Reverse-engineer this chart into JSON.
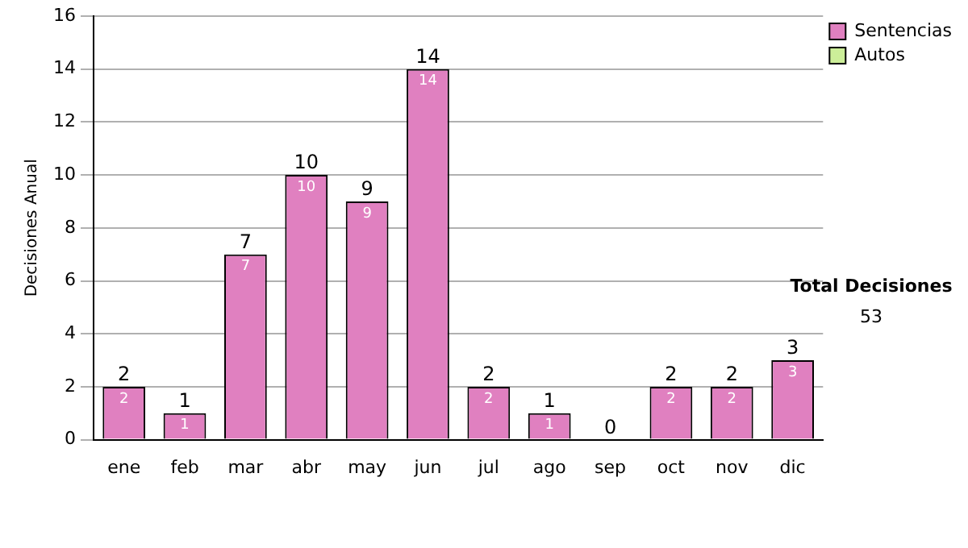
{
  "chart_data": {
    "type": "bar",
    "stacked": true,
    "ylabel": "Decisiones Anual",
    "categories": [
      "ene",
      "feb",
      "mar",
      "abr",
      "may",
      "jun",
      "jul",
      "ago",
      "sep",
      "oct",
      "nov",
      "dic"
    ],
    "series": [
      {
        "name": "Sentencias",
        "color": "#e080c0",
        "values": [
          2,
          1,
          7,
          10,
          9,
          14,
          2,
          1,
          0,
          2,
          2,
          3
        ],
        "value_labels": [
          "2",
          "1",
          "7",
          "10",
          "9",
          "14",
          "2",
          "1",
          null,
          "2",
          "2",
          "3"
        ]
      },
      {
        "name": "Autos",
        "color": "#ccee99",
        "values": [
          0,
          0,
          0,
          0,
          0,
          0,
          0,
          0,
          0,
          0,
          0,
          0
        ]
      }
    ],
    "totals": [
      "2",
      "1",
      "7",
      "10",
      "9",
      "14",
      "2",
      "1",
      "0",
      "2",
      "2",
      "3"
    ],
    "ylim": [
      0,
      16
    ],
    "yticks": [
      0,
      2,
      4,
      6,
      8,
      10,
      12,
      14,
      16
    ],
    "grid": "y",
    "legend": "right",
    "annotations": [
      "Total Decisiones",
      "53"
    ]
  }
}
